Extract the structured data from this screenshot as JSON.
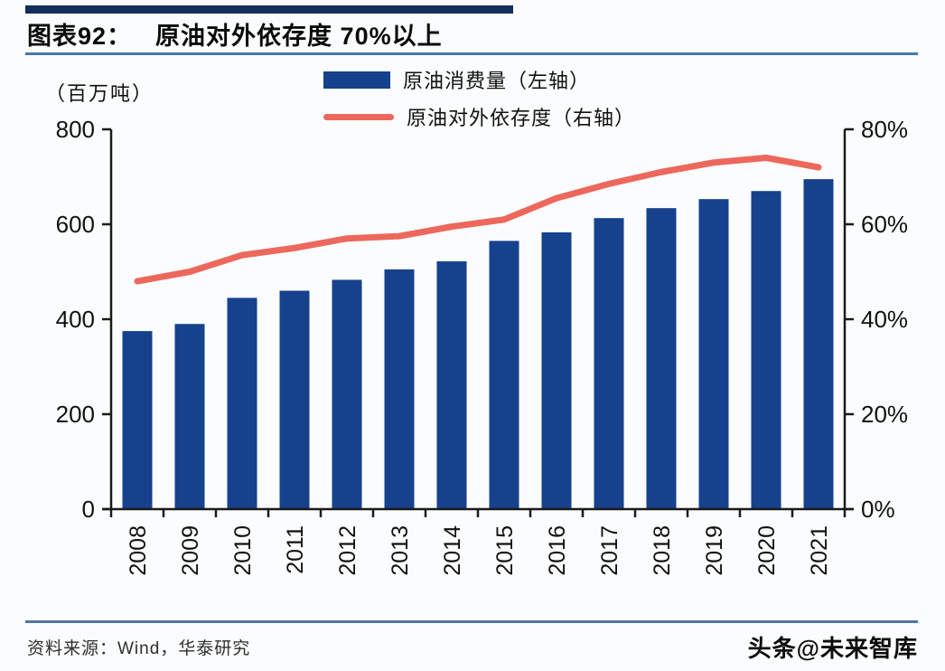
{
  "header": {
    "chart_no": "图表92：",
    "chart_title": "原油对外依存度 70%以上",
    "top_bar_color": "#132f5a",
    "underline_color": "#4677a8"
  },
  "chart_data": {
    "type": "bar",
    "title": "原油对外依存度 70%以上",
    "unit_label": "（百万吨）",
    "categories": [
      "2008",
      "2009",
      "2010",
      "2011",
      "2012",
      "2013",
      "2014",
      "2015",
      "2016",
      "2017",
      "2018",
      "2019",
      "2020",
      "2021"
    ],
    "series": [
      {
        "name": "原油消费量（左轴）",
        "type": "bar",
        "axis": "left",
        "color": "#16418c",
        "values": [
          375,
          390,
          445,
          460,
          483,
          505,
          522,
          565,
          583,
          613,
          634,
          653,
          670,
          695
        ]
      },
      {
        "name": "原油对外依存度（右轴）",
        "type": "line",
        "axis": "right",
        "color": "#ed685c",
        "values": [
          48,
          50,
          53.5,
          55,
          57,
          57.5,
          59.5,
          61,
          65.5,
          68.5,
          71,
          73,
          74,
          72
        ]
      }
    ],
    "left_axis": {
      "label": "（百万吨）",
      "min": 0,
      "max": 800,
      "ticks": [
        0,
        200,
        400,
        600,
        800
      ]
    },
    "right_axis": {
      "min": 0,
      "max": 80,
      "ticks": [
        0,
        20,
        40,
        60,
        80
      ],
      "suffix": "%"
    },
    "grid": false,
    "legend_position": "top-center",
    "axis_color": "#1a1a1a"
  },
  "footer": {
    "source": "资料来源：Wind，华泰研究",
    "watermark": "头条@未来智库",
    "divider_color": "#51779f"
  }
}
